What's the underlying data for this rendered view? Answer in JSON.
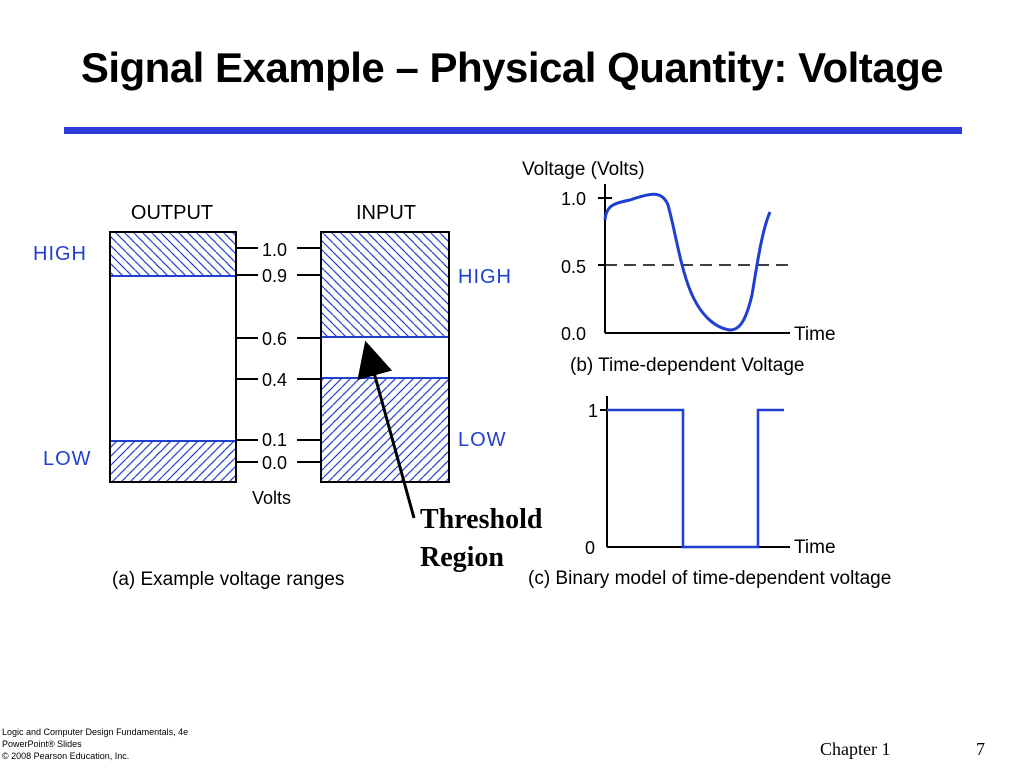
{
  "title": "Signal Example – Physical Quantity: Voltage",
  "colors": {
    "accent_blue": "#1f3fd0",
    "rule_blue": "#2b3bd9",
    "text": "#000000",
    "white": "#ffffff"
  },
  "panel_a": {
    "output_header": "OUTPUT",
    "input_header": "INPUT",
    "output_high_label": "HIGH",
    "output_low_label": "LOW",
    "input_high_label": "HIGH",
    "input_low_label": "LOW",
    "scale_ticks": [
      "1.0",
      "0.9",
      "0.6",
      "0.4",
      "0.1",
      "0.0"
    ],
    "axis_unit": "Volts",
    "caption": "(a) Example voltage ranges",
    "output_high_range": [
      0.9,
      1.0
    ],
    "output_low_range": [
      0.0,
      0.1
    ],
    "input_high_range": [
      0.6,
      1.0
    ],
    "input_low_range": [
      0.0,
      0.4
    ],
    "threshold_label_line1": "Threshold",
    "threshold_label_line2": "Region"
  },
  "panel_b": {
    "ylabel": "Voltage (Volts)",
    "y_ticks": [
      "1.0",
      "0.5",
      "0.0"
    ],
    "xlabel": "Time",
    "caption": "(b) Time-dependent Voltage"
  },
  "panel_c": {
    "y_ticks": [
      "1",
      "0"
    ],
    "xlabel": "Time",
    "caption": "(c) Binary model of time-dependent voltage"
  },
  "footer": {
    "credit_line1": "Logic and Computer Design Fundamentals, 4e",
    "credit_line2": "PowerPoint® Slides",
    "credit_line3": "© 2008 Pearson Education, Inc.",
    "chapter": "Chapter 1",
    "page": "7"
  }
}
